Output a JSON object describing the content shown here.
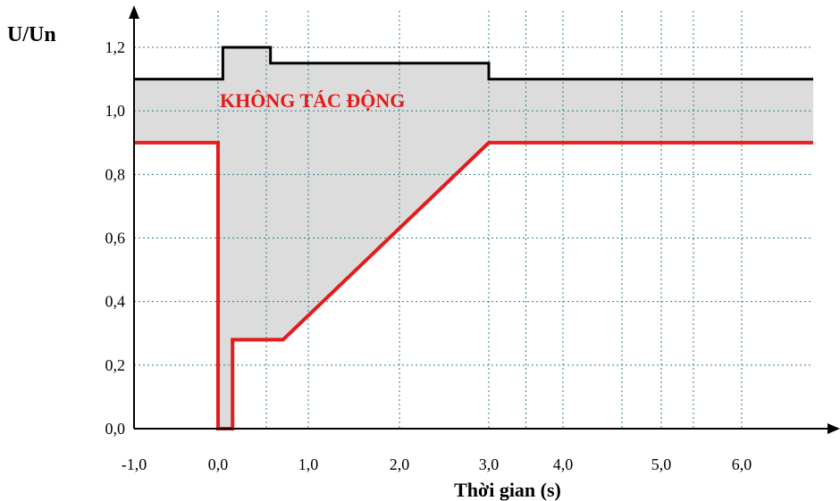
{
  "chart_data": {
    "type": "line",
    "ylabel": "U/Un",
    "xlabel": "Thời gian (s)",
    "region_label": "KHÔNG TÁC ĐỘNG",
    "x_ticks": [
      {
        "value": -1,
        "label": "-1,0"
      },
      {
        "value": 0,
        "label": "0,0"
      },
      {
        "value": 0.5,
        "label": ""
      },
      {
        "value": 1,
        "label": "1,0"
      },
      {
        "value": 2,
        "label": "2,0"
      },
      {
        "value": 3,
        "label": "3,0"
      },
      {
        "value": 3.5,
        "label": ""
      },
      {
        "value": 4,
        "label": "4,0"
      },
      {
        "value": 4.6,
        "label": ""
      },
      {
        "value": 5,
        "label": "5,0"
      },
      {
        "value": 5.4,
        "label": ""
      },
      {
        "value": 6,
        "label": "6,0"
      }
    ],
    "y_ticks": [
      {
        "value": 0,
        "label": "0,0"
      },
      {
        "value": 0.2,
        "label": "0,2"
      },
      {
        "value": 0.4,
        "label": "0,4"
      },
      {
        "value": 0.6,
        "label": "0,6"
      },
      {
        "value": 0.8,
        "label": "0,8"
      },
      {
        "value": 1.0,
        "label": "1,0"
      },
      {
        "value": 1.2,
        "label": "1,2"
      }
    ],
    "xlim": [
      -1,
      6.6
    ],
    "ylim": [
      0,
      1.2
    ],
    "grid": true,
    "series": [
      {
        "color": "#000000",
        "points": [
          [
            -1,
            1.1
          ],
          [
            0.05,
            1.1
          ],
          [
            0.05,
            1.2
          ],
          [
            0.55,
            1.2
          ],
          [
            0.55,
            1.15
          ],
          [
            3.0,
            1.15
          ],
          [
            3.0,
            1.1
          ],
          [
            6.6,
            1.1
          ]
        ]
      },
      {
        "color": "#e31b1b",
        "points": [
          [
            -1,
            0.9
          ],
          [
            0.0,
            0.9
          ],
          [
            0.0,
            0.0
          ],
          [
            0.15,
            0.0
          ],
          [
            0.15,
            0.28
          ],
          [
            0.7,
            0.28
          ],
          [
            3.0,
            0.9
          ],
          [
            6.6,
            0.9
          ]
        ]
      }
    ],
    "fill_color": "#dcdcdc",
    "grid_color": "#2f7f86",
    "label_color": "#e31b1b"
  }
}
